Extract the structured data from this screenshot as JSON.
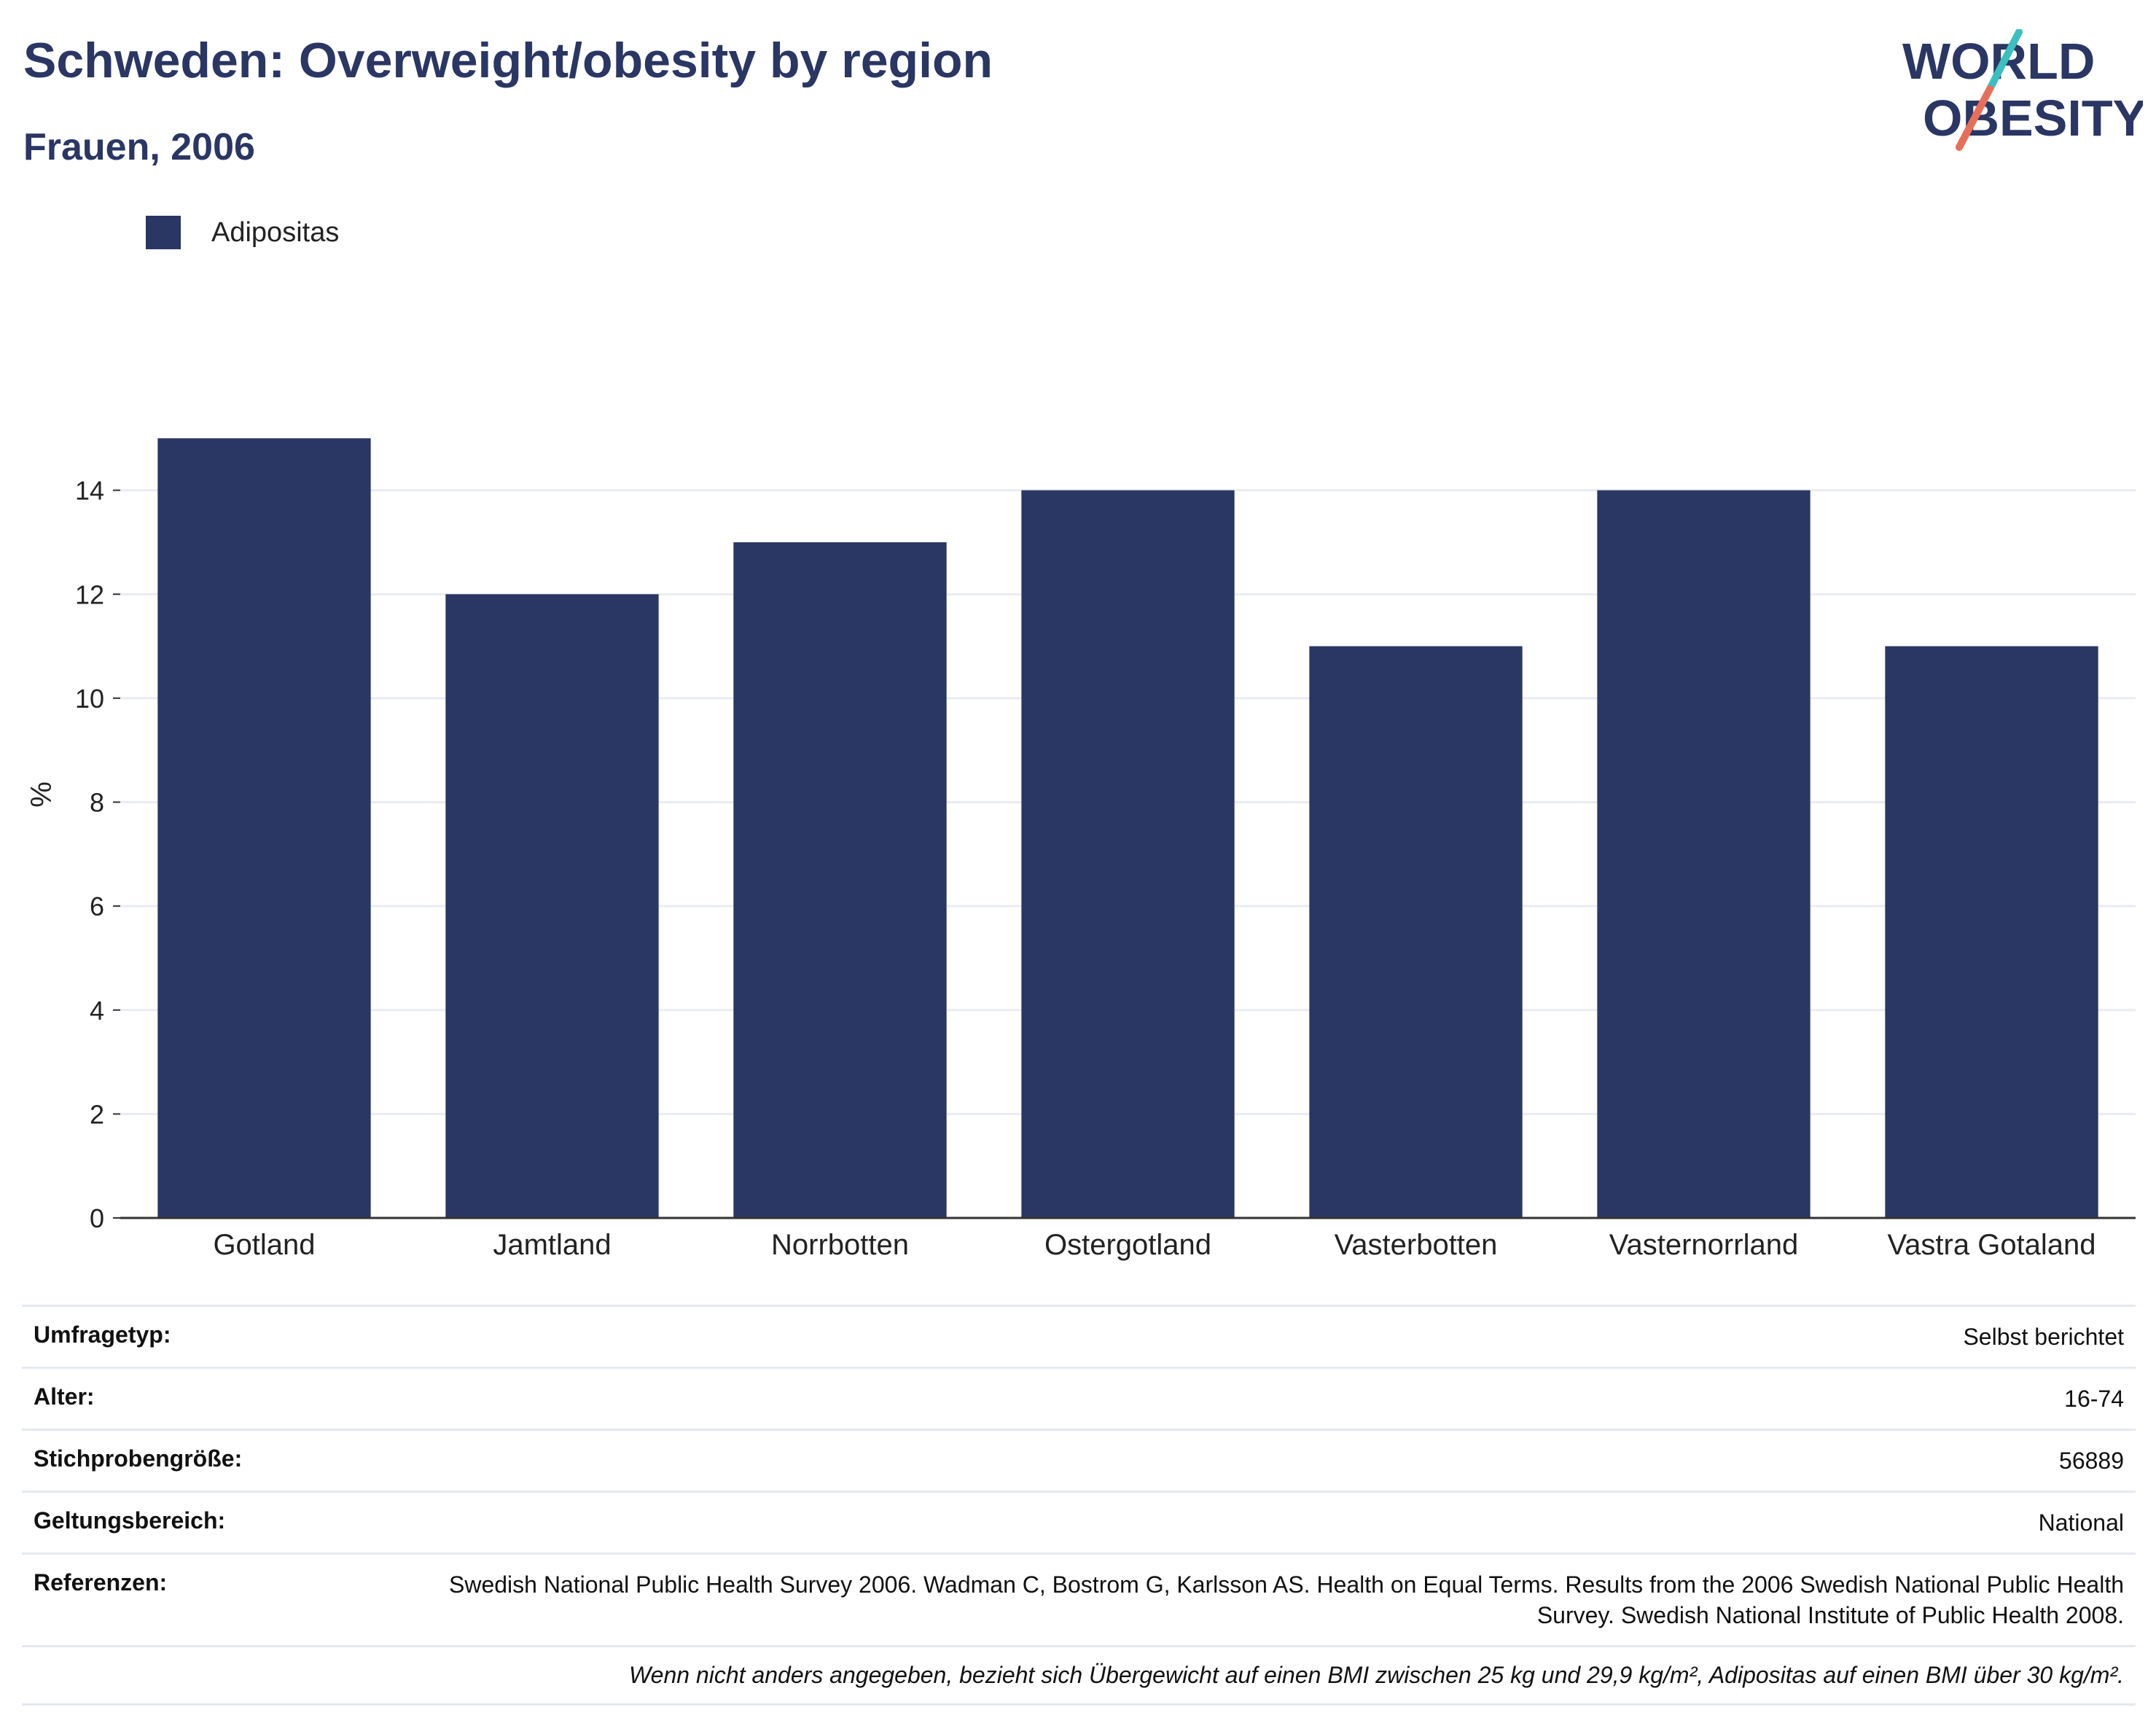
{
  "header": {
    "title": "Schweden: Overweight/obesity by region",
    "subtitle": "Frauen, 2006"
  },
  "logo": {
    "line1": "WORLD",
    "line2": "OBESITY"
  },
  "colors": {
    "bar": "#2a3663",
    "title": "#2a3663",
    "grid": "#e9ecf2",
    "logo_teal": "#3bbfbf",
    "logo_coral": "#e76f5a"
  },
  "chart_data": {
    "type": "bar",
    "categories": [
      "Gotland",
      "Jamtland",
      "Norrbotten",
      "Ostergotland",
      "Vasterbotten",
      "Vasternorrland",
      "Vastra Gotaland"
    ],
    "series": [
      {
        "name": "Adipositas",
        "values": [
          15,
          12,
          13,
          14,
          11,
          14,
          11
        ]
      }
    ],
    "ylabel": "%",
    "xlabel": "",
    "ylim": [
      0,
      16
    ],
    "yticks": [
      0,
      2,
      4,
      6,
      8,
      10,
      12,
      14
    ],
    "grid": true,
    "legend": "top-left"
  },
  "meta": {
    "rows": [
      {
        "key": "Umfragetyp:",
        "value": "Selbst berichtet"
      },
      {
        "key": "Alter:",
        "value": "16-74"
      },
      {
        "key": "Stichprobengröße:",
        "value": "56889"
      },
      {
        "key": "Geltungsbereich:",
        "value": "National"
      },
      {
        "key": "Referenzen:",
        "value": "Swedish National Public Health Survey 2006. Wadman C, Bostrom G, Karlsson AS. Health on Equal Terms. Results from the 2006 Swedish National Public Health Survey. Swedish National Institute of Public Health 2008."
      }
    ],
    "note": "Wenn nicht anders angegeben, bezieht sich Übergewicht auf einen BMI zwischen 25 kg und 29,9 kg/m², Adipositas auf einen BMI über 30 kg/m²."
  }
}
